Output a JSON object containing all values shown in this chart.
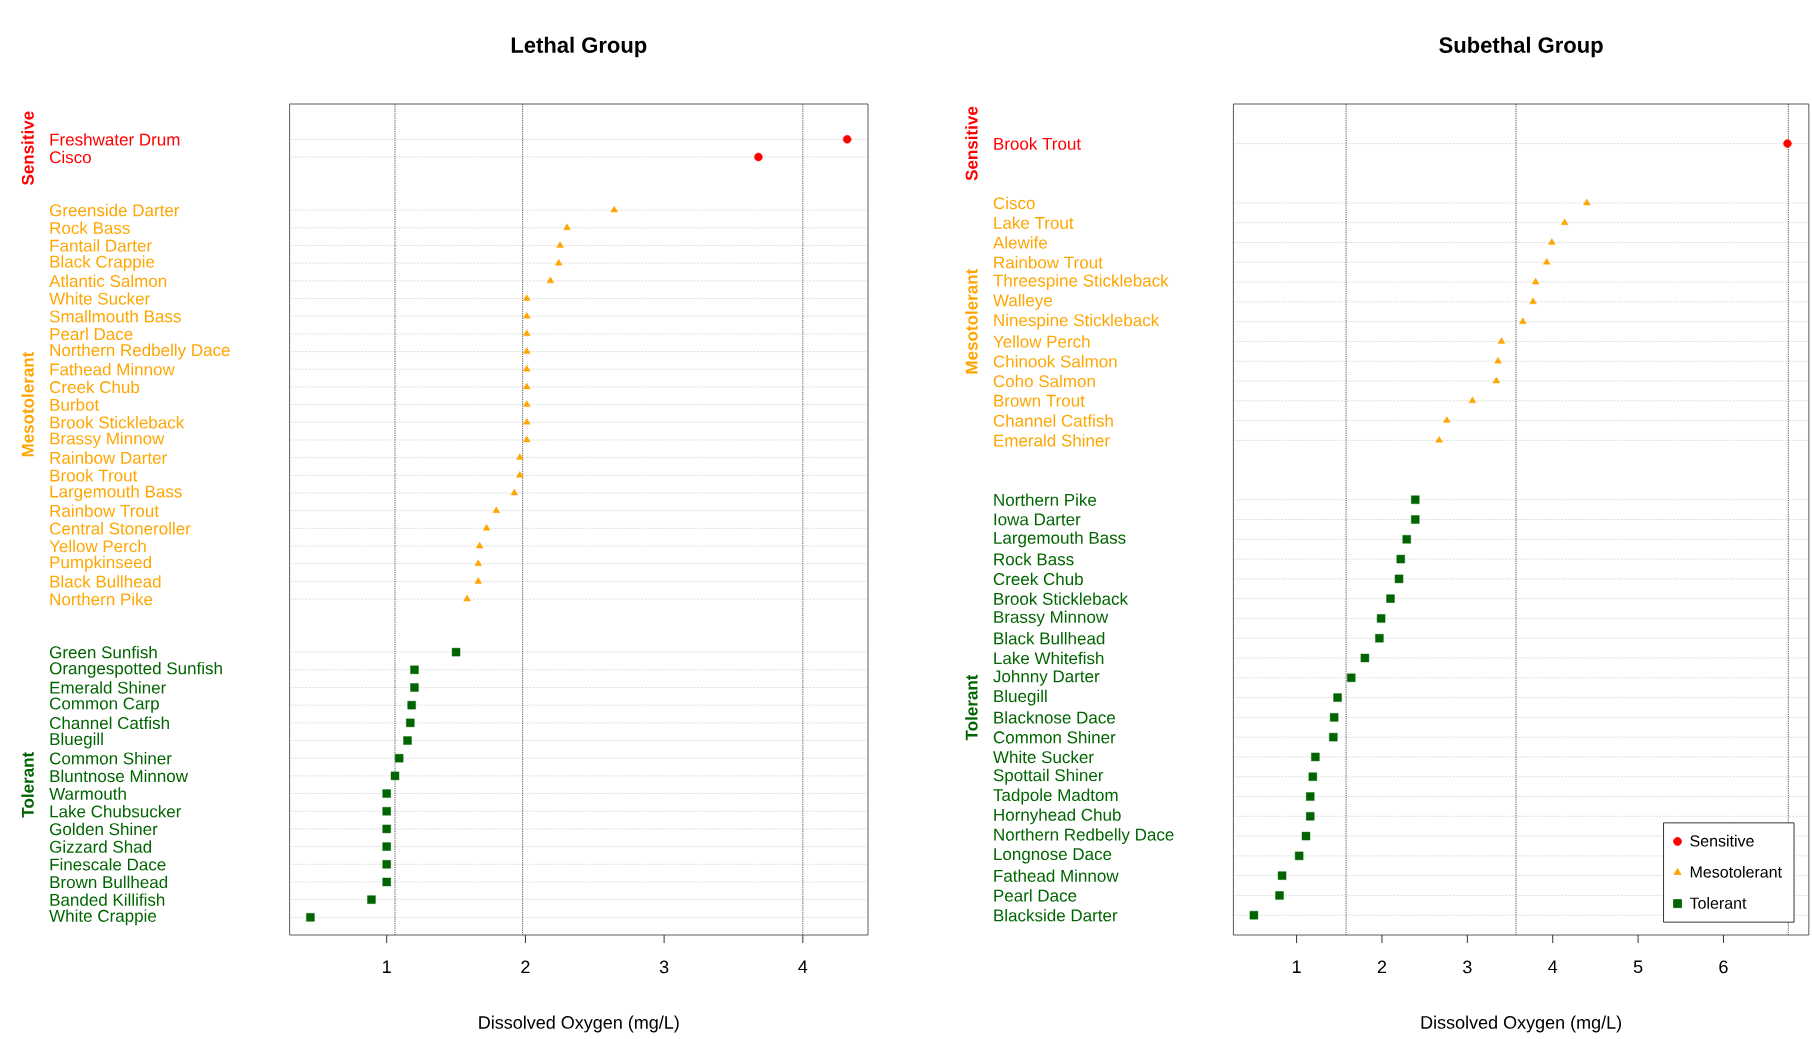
{
  "chart_data": [
    {
      "type": "scatter",
      "orientation": "horizontal",
      "title": "Lethal Group",
      "xlabel": "Dissolved Oxygen (mg/L)",
      "grid": "y",
      "legend": false,
      "categories": [
        "Freshwater Drum",
        "Cisco",
        null,
        null,
        "Greenside Darter",
        "Rock Bass",
        "Fantail Darter",
        "Black Crappie",
        "Atlantic Salmon",
        "White Sucker",
        "Smallmouth Bass",
        "Pearl Dace",
        "Northern Redbelly Dace",
        "Fathead Minnow",
        "Creek Chub",
        "Burbot",
        "Brook Stickleback",
        "Brassy Minnow",
        "Rainbow Darter",
        "Brook Trout",
        "Largemouth Bass",
        "Rainbow Trout",
        "Central Stoneroller",
        "Yellow Perch",
        "Pumpkinseed",
        "Black Bullhead",
        "Northern Pike",
        null,
        null,
        "Green Sunfish",
        "Orangespotted Sunfish",
        "Emerald Shiner",
        "Common Carp",
        "Channel Catfish",
        "Bluegill",
        "Common Shiner",
        "Bluntnose Minnow",
        "Warmouth",
        "Lake Chubsucker",
        "Golden Shiner",
        "Gizzard Shad",
        "Finescale Dace",
        "Brown Bullhead",
        "Banded Killifish",
        "White Crappie"
      ],
      "series": [
        {
          "name": "Sensitive",
          "color": "#ff0000",
          "marker": "circle",
          "values": [
            4.32,
            3.68,
            null,
            null,
            null,
            null,
            null,
            null,
            null,
            null,
            null,
            null,
            null,
            null,
            null,
            null,
            null,
            null,
            null,
            null,
            null,
            null,
            null,
            null,
            null,
            null,
            null,
            null,
            null,
            null,
            null,
            null,
            null,
            null,
            null,
            null,
            null,
            null,
            null,
            null,
            null,
            null,
            null,
            null,
            null
          ]
        },
        {
          "name": "Mesotolerant",
          "color": "#ffa500",
          "marker": "triangle",
          "values": [
            null,
            null,
            null,
            null,
            2.64,
            2.3,
            2.25,
            2.24,
            2.18,
            2.01,
            2.01,
            2.01,
            2.01,
            2.01,
            2.01,
            2.01,
            2.01,
            2.01,
            1.96,
            1.96,
            1.92,
            1.79,
            1.72,
            1.67,
            1.66,
            1.66,
            1.58,
            null,
            null,
            null,
            null,
            null,
            null,
            null,
            null,
            null,
            null,
            null,
            null,
            null,
            null,
            null,
            null,
            null,
            null
          ]
        },
        {
          "name": "Tolerant",
          "color": "#006400",
          "marker": "square",
          "values": [
            null,
            null,
            null,
            null,
            null,
            null,
            null,
            null,
            null,
            null,
            null,
            null,
            null,
            null,
            null,
            null,
            null,
            null,
            null,
            null,
            null,
            null,
            null,
            null,
            null,
            null,
            null,
            null,
            null,
            1.5,
            1.2,
            1.2,
            1.18,
            1.17,
            1.15,
            1.09,
            1.06,
            1.0,
            1.0,
            1.0,
            1.0,
            1.0,
            1.0,
            0.89,
            0.45
          ]
        }
      ],
      "xlim": [
        0.3,
        4.47
      ],
      "xticks": [
        1,
        2,
        3,
        4
      ],
      "ref_lines": [
        {
          "axis": "x",
          "value": 1.06,
          "color": "#000000",
          "line_style": "dotted"
        },
        {
          "axis": "x",
          "value": 1.98,
          "color": "#000000",
          "line_style": "dotted"
        },
        {
          "axis": "x",
          "value": 4.0,
          "color": "#000000",
          "line_style": "dotted"
        }
      ]
    },
    {
      "type": "scatter",
      "orientation": "horizontal",
      "title": "Subethal Group",
      "xlabel": "Dissolved Oxygen (mg/L)",
      "grid": "y",
      "legend": "bottom right",
      "categories": [
        "Brook Trout",
        null,
        null,
        "Cisco",
        "Lake Trout",
        "Alewife",
        "Rainbow Trout",
        "Threespine Stickleback",
        "Walleye",
        "Ninespine Stickleback",
        "Yellow Perch",
        "Chinook Salmon",
        "Coho Salmon",
        "Brown Trout",
        "Channel Catfish",
        "Emerald Shiner",
        null,
        null,
        "Northern Pike",
        "Iowa Darter",
        "Largemouth Bass",
        "Rock Bass",
        "Creek Chub",
        "Brook Stickleback",
        "Brassy Minnow",
        "Black Bullhead",
        "Lake Whitefish",
        "Johnny Darter",
        "Bluegill",
        "Blacknose Dace",
        "Common Shiner",
        "White Sucker",
        "Spottail Shiner",
        "Tadpole Madtom",
        "Hornyhead Chub",
        "Northern Redbelly Dace",
        "Longnose Dace",
        "Fathead Minnow",
        "Pearl Dace",
        "Blackside Darter"
      ],
      "series": [
        {
          "name": "Sensitive",
          "color": "#ff0000",
          "marker": "circle",
          "values": [
            6.75,
            null,
            null,
            null,
            null,
            null,
            null,
            null,
            null,
            null,
            null,
            null,
            null,
            null,
            null,
            null,
            null,
            null,
            null,
            null,
            null,
            null,
            null,
            null,
            null,
            null,
            null,
            null,
            null,
            null,
            null,
            null,
            null,
            null,
            null,
            null,
            null,
            null,
            null,
            null
          ]
        },
        {
          "name": "Mesotolerant",
          "color": "#ffa500",
          "marker": "triangle",
          "values": [
            null,
            null,
            null,
            4.4,
            4.14,
            3.99,
            3.93,
            3.8,
            3.77,
            3.65,
            3.4,
            3.36,
            3.34,
            3.06,
            2.76,
            2.67,
            null,
            null,
            null,
            null,
            null,
            null,
            null,
            null,
            null,
            null,
            null,
            null,
            null,
            null,
            null,
            null,
            null,
            null,
            null,
            null,
            null,
            null,
            null,
            null
          ]
        },
        {
          "name": "Tolerant",
          "color": "#006400",
          "marker": "square",
          "values": [
            null,
            null,
            null,
            null,
            null,
            null,
            null,
            null,
            null,
            null,
            null,
            null,
            null,
            null,
            null,
            null,
            null,
            null,
            2.39,
            2.39,
            2.29,
            2.22,
            2.2,
            2.1,
            1.99,
            1.97,
            1.8,
            1.64,
            1.48,
            1.44,
            1.43,
            1.22,
            1.19,
            1.16,
            1.16,
            1.11,
            1.03,
            0.83,
            0.8,
            0.5
          ]
        }
      ],
      "xlim": [
        0.26,
        7.0
      ],
      "xticks": [
        1,
        2,
        3,
        4,
        5,
        6
      ],
      "ref_lines": [
        {
          "axis": "x",
          "value": 1.58,
          "color": "#000000",
          "line_style": "dotted"
        },
        {
          "axis": "x",
          "value": 3.57,
          "color": "#000000",
          "line_style": "dotted"
        },
        {
          "axis": "x",
          "value": 6.76,
          "color": "#000000",
          "line_style": "dotted"
        }
      ]
    }
  ]
}
